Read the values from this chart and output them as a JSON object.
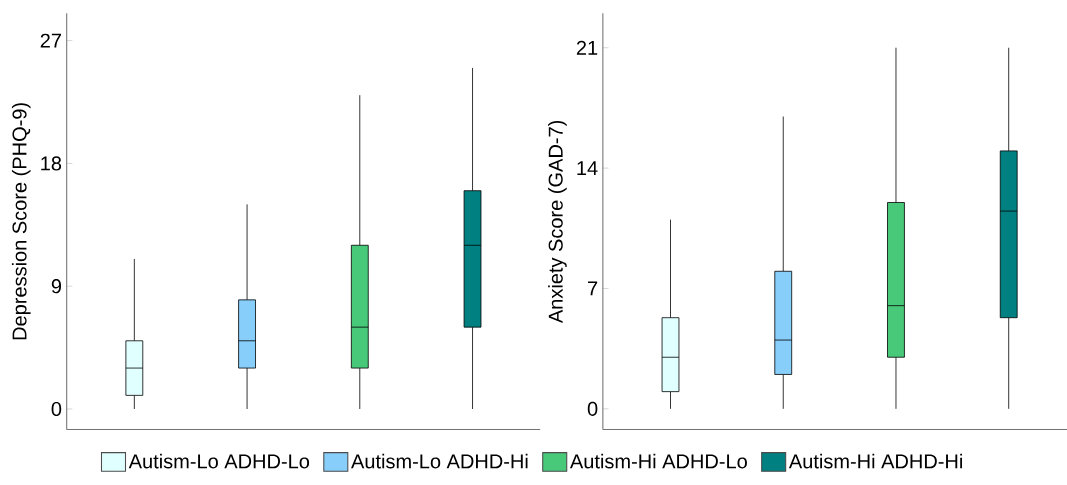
{
  "chart_data": [
    {
      "type": "box",
      "ylabel": "Depression Score (PHQ-9)",
      "categories": [
        null,
        null,
        null,
        null
      ],
      "ylim": [
        -1.5,
        29
      ],
      "yticks": [
        0,
        9,
        18,
        27
      ],
      "grid": false,
      "legend": "bottom",
      "series": [
        {
          "name": "Autism-Lo ADHD-Lo",
          "color": "#e0ffff",
          "boxes": [
            {
              "low": 0,
              "q1": 1,
              "median": 3,
              "q3": 5,
              "high": 11
            },
            null,
            null,
            null
          ]
        },
        {
          "name": "Autism-Lo ADHD-Hi",
          "color": "#87cefa",
          "boxes": [
            null,
            {
              "low": 0,
              "q1": 3,
              "median": 5,
              "q3": 8,
              "high": 15
            },
            null,
            null
          ]
        },
        {
          "name": "Autism-Hi ADHD-Lo",
          "color": "#48c97a",
          "boxes": [
            null,
            null,
            {
              "low": 0,
              "q1": 3,
              "median": 6,
              "q3": 12,
              "high": 23
            },
            null
          ]
        },
        {
          "name": "Autism-Hi ADHD-Hi",
          "color": "#008080",
          "boxes": [
            null,
            null,
            null,
            {
              "low": 0,
              "q1": 6,
              "median": 12,
              "q3": 16,
              "high": 25
            }
          ]
        }
      ]
    },
    {
      "type": "box",
      "ylabel": "Anxiety Score (GAD-7)",
      "categories": [
        null,
        null,
        null,
        null
      ],
      "ylim": [
        -1.2,
        23
      ],
      "yticks": [
        0,
        7,
        14,
        21
      ],
      "grid": false,
      "series": [
        {
          "color": "#e0ffff",
          "boxes": [
            {
              "low": 0,
              "q1": 1,
              "median": 3,
              "q3": 5.3,
              "high": 11
            },
            null,
            null,
            null
          ]
        },
        {
          "color": "#87cefa",
          "boxes": [
            null,
            {
              "low": 0,
              "q1": 2,
              "median": 4,
              "q3": 8,
              "high": 17
            },
            null,
            null
          ]
        },
        {
          "color": "#48c97a",
          "boxes": [
            null,
            null,
            {
              "low": 0,
              "q1": 3,
              "median": 6,
              "q3": 12,
              "high": 21
            },
            null
          ]
        },
        {
          "color": "#008080",
          "boxes": [
            null,
            null,
            null,
            {
              "low": 0,
              "q1": 5.3,
              "median": 11.5,
              "q3": 15,
              "high": 21
            }
          ]
        }
      ]
    }
  ]
}
